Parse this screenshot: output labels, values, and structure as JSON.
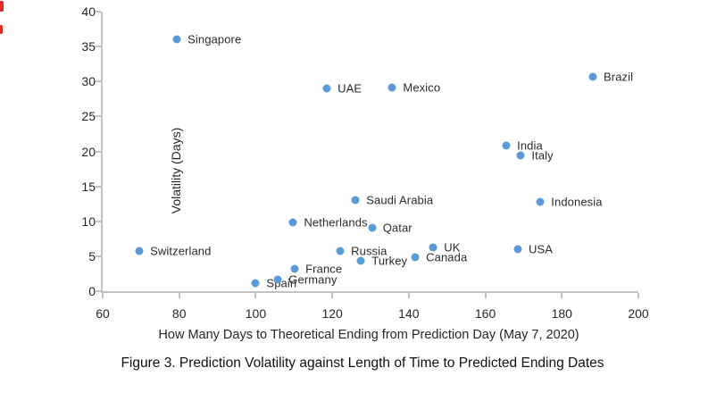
{
  "caption": "Figure 3. Prediction Volatility against Length of Time to Predicted Ending Dates",
  "chart_data": {
    "type": "scatter",
    "title": "",
    "xlabel": "How Many Days to Theoretical Ending from Prediction Day (May 7, 2020)",
    "ylabel": "Volatility (Days)",
    "xlim": [
      60,
      200
    ],
    "ylim": [
      0,
      40
    ],
    "x_ticks": [
      60,
      80,
      100,
      120,
      140,
      160,
      180,
      200
    ],
    "y_ticks": [
      0,
      5,
      10,
      15,
      20,
      25,
      30,
      35,
      40
    ],
    "grid": false,
    "legend": false,
    "marker_color": "#5b9bd5",
    "label_position": "right",
    "points": [
      {
        "label": "Switzerland",
        "x": 69.6,
        "y": 5.8
      },
      {
        "label": "Singapore",
        "x": 79.4,
        "y": 36.1
      },
      {
        "label": "Spain",
        "x": 100.0,
        "y": 1.1
      },
      {
        "label": "Germany",
        "x": 105.8,
        "y": 1.6
      },
      {
        "label": "Netherlands",
        "x": 109.8,
        "y": 9.9
      },
      {
        "label": "France",
        "x": 110.2,
        "y": 3.2
      },
      {
        "label": "UAE",
        "x": 118.6,
        "y": 29.0
      },
      {
        "label": "Russia",
        "x": 122.1,
        "y": 5.8
      },
      {
        "label": "Saudi Arabia",
        "x": 126.1,
        "y": 13.0
      },
      {
        "label": "Turkey",
        "x": 127.5,
        "y": 4.3
      },
      {
        "label": "Qatar",
        "x": 130.4,
        "y": 9.1
      },
      {
        "label": "Mexico",
        "x": 135.7,
        "y": 29.2
      },
      {
        "label": "Canada",
        "x": 141.7,
        "y": 4.8
      },
      {
        "label": "UK",
        "x": 146.4,
        "y": 6.3
      },
      {
        "label": "India",
        "x": 165.5,
        "y": 20.8
      },
      {
        "label": "USA",
        "x": 168.5,
        "y": 6.0
      },
      {
        "label": "Italy",
        "x": 169.3,
        "y": 19.4
      },
      {
        "label": "Indonesia",
        "x": 174.4,
        "y": 12.8
      },
      {
        "label": "Brazil",
        "x": 188.1,
        "y": 30.7
      }
    ]
  }
}
